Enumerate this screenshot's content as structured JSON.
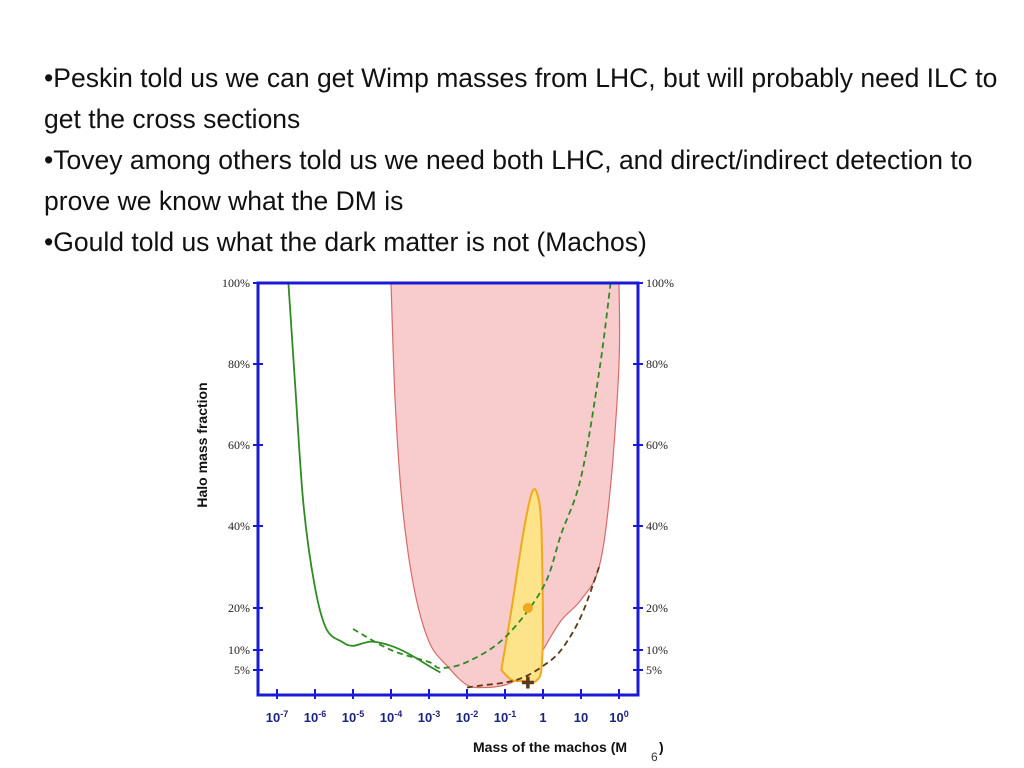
{
  "bullets": [
    "•Peskin told us we can get Wimp masses from LHC, but will probably need ILC to get the cross sections",
    "•Tovey among others told us we need both LHC, and direct/indirect detection to prove we know what the DM is",
    "•Gould told us what the dark matter is not (Machos)"
  ],
  "page_number": "6",
  "chart_data": {
    "type": "area",
    "xlabel": "Mass of the machos (M",
    "ylabel": "Halo mass fraction",
    "x_scale": "log",
    "x_tick_labels": [
      "10-7",
      "10-6",
      "10-5",
      "10-4",
      "10-3",
      "10-2",
      "10-1",
      "1",
      "10",
      "100"
    ],
    "x_tick_values": [
      1e-07,
      1e-06,
      1e-05,
      0.0001,
      0.001,
      0.01,
      0.1,
      1,
      10,
      100
    ],
    "y_tick_labels_left": [
      "100%",
      "80%",
      "60%",
      "40%",
      "20%",
      "10%",
      "5%"
    ],
    "y_tick_labels_right": [
      "100%",
      "80%",
      "60%",
      "40%",
      "20%",
      "10%",
      "5%"
    ],
    "y_tick_values": [
      100,
      80,
      60,
      40,
      20,
      10,
      5
    ],
    "ylim": [
      0,
      100
    ],
    "grid": false,
    "colors": {
      "axes": "#1a1ad6",
      "excluded_fill": "#f8cccd",
      "excluded_edge": "#d86a6a",
      "green": "#2e8b22",
      "contour_fill": "#fde38a",
      "contour_edge": "#f0a81e",
      "brown": "#5a3a14"
    },
    "series": [
      {
        "type": "line",
        "style": "solid",
        "color_key": "green",
        "x": [
          2e-07,
          3e-07,
          5e-07,
          1e-06,
          2e-06,
          5e-06,
          1e-05,
          3e-05,
          0.0001,
          0.0003,
          0.001,
          0.002
        ],
        "y": [
          100,
          75,
          45,
          25,
          15,
          12,
          11,
          12,
          11,
          9,
          6,
          4.5
        ]
      },
      {
        "type": "area",
        "color_key": "excluded_fill",
        "x": [
          0.0001,
          0.00013,
          0.0002,
          0.0004,
          0.001,
          0.003,
          0.01,
          0.03,
          0.1,
          0.2,
          0.5,
          1,
          3,
          10,
          30,
          60,
          100,
          100
        ],
        "y": [
          100,
          70,
          45,
          25,
          12,
          6,
          2,
          1.5,
          2,
          3,
          5,
          10,
          17,
          22,
          30,
          50,
          80,
          100
        ]
      },
      {
        "type": "line",
        "style": "dashed",
        "color_key": "green",
        "x": [
          1e-05,
          0.0001,
          0.001,
          0.002,
          0.01,
          0.1,
          1,
          3,
          10,
          30,
          60
        ],
        "y": [
          15,
          10,
          7,
          5.5,
          7,
          13,
          25,
          38,
          52,
          78,
          100
        ]
      },
      {
        "type": "line",
        "style": "dashed",
        "color_key": "brown",
        "x": [
          0.01,
          0.03,
          0.1,
          0.3,
          1,
          3,
          10,
          30
        ],
        "y": [
          1.5,
          2,
          2.5,
          3.5,
          6,
          10,
          18,
          30
        ]
      },
      {
        "type": "area",
        "color_key": "contour_fill",
        "x": [
          0.08,
          0.15,
          0.3,
          0.5,
          0.7,
          0.9,
          1,
          0.9,
          0.7,
          0.5,
          0.3,
          0.15,
          0.08
        ],
        "y": [
          5,
          20,
          38,
          48,
          48,
          40,
          15,
          5,
          3,
          2.5,
          2.8,
          3,
          5
        ]
      },
      {
        "type": "scatter",
        "color_key": "contour_edge",
        "x": [
          0.4
        ],
        "y": [
          20
        ]
      },
      {
        "type": "scatter",
        "color_key": "brown",
        "x": [
          0.4
        ],
        "y": [
          2.5
        ]
      }
    ]
  }
}
